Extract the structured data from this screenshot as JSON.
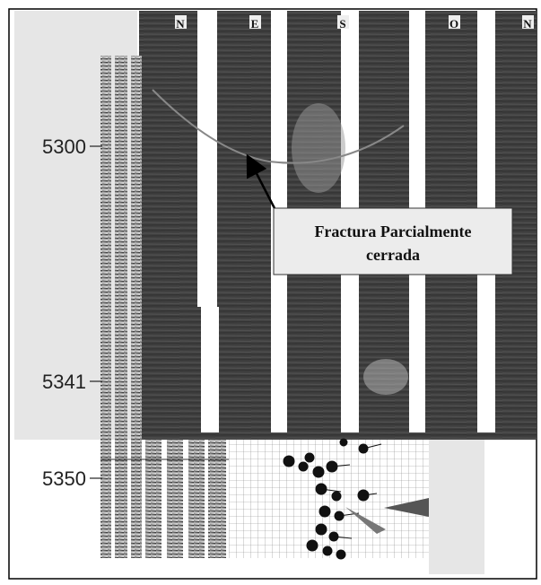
{
  "compass_labels": [
    "N",
    "E",
    "S",
    "O",
    "N"
  ],
  "depth_labels": [
    5300,
    5341,
    5350
  ],
  "annotation": {
    "line1": "Fractura Parcialmente",
    "line2": "cerrada"
  }
}
